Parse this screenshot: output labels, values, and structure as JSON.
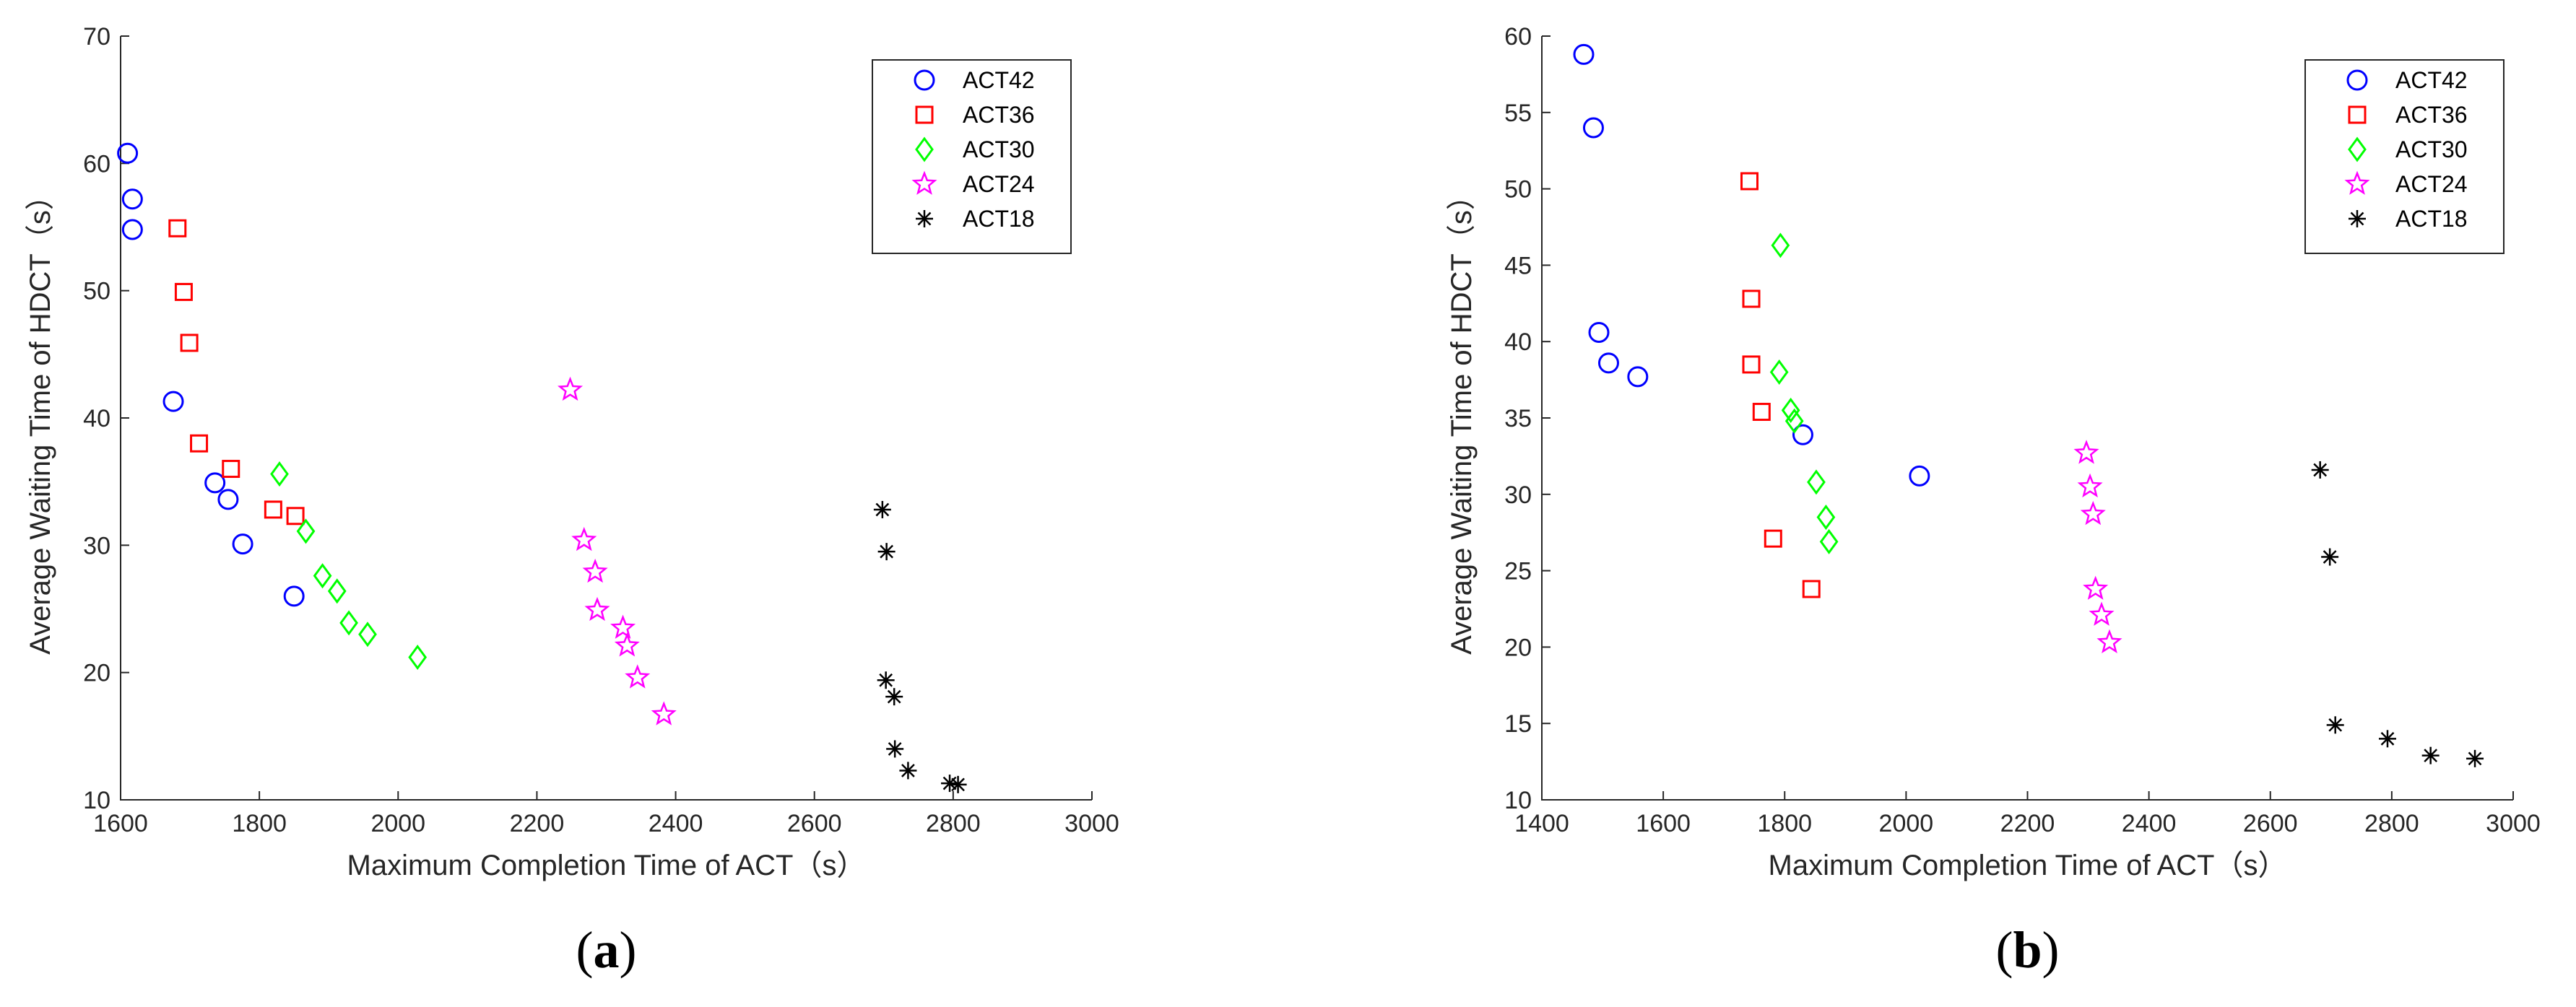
{
  "chart_data": [
    {
      "type": "scatter",
      "panel_label": "a",
      "xlabel": "Maximum Completion Time of ACT（s）",
      "ylabel": "Average Waiting Time of HDCT（s）",
      "xlim": [
        1600,
        3000
      ],
      "ylim": [
        10,
        70
      ],
      "xticks": [
        "1600",
        "1800",
        "2000",
        "2200",
        "2400",
        "2600",
        "2800",
        "3000"
      ],
      "yticks": [
        "10",
        "20",
        "30",
        "40",
        "50",
        "60",
        "70"
      ],
      "legend_position": "top-right",
      "grid": false,
      "series": [
        {
          "name": "ACT42",
          "marker": "circle",
          "color": "#0000FF",
          "points": [
            [
              1610,
              60.8
            ],
            [
              1617,
              57.2
            ],
            [
              1617,
              54.8
            ],
            [
              1676,
              41.3
            ],
            [
              1736,
              34.9
            ],
            [
              1755,
              33.6
            ],
            [
              1776,
              30.1
            ],
            [
              1850,
              26.0
            ]
          ]
        },
        {
          "name": "ACT36",
          "marker": "square",
          "color": "#FF0000",
          "points": [
            [
              1682,
              54.9
            ],
            [
              1691,
              49.9
            ],
            [
              1699,
              45.9
            ],
            [
              1713,
              38.0
            ],
            [
              1759,
              36.0
            ],
            [
              1820,
              32.8
            ],
            [
              1852,
              32.3
            ]
          ]
        },
        {
          "name": "ACT30",
          "marker": "diamond",
          "color": "#00FF00",
          "points": [
            [
              1829,
              35.6
            ],
            [
              1867,
              31.1
            ],
            [
              1891,
              27.6
            ],
            [
              1912,
              26.4
            ],
            [
              1929,
              23.9
            ],
            [
              1956,
              23.0
            ],
            [
              2028,
              21.2
            ]
          ]
        },
        {
          "name": "ACT24",
          "marker": "star",
          "color": "#FF00FF",
          "points": [
            [
              2248,
              42.2
            ],
            [
              2268,
              30.4
            ],
            [
              2284,
              27.9
            ],
            [
              2287,
              24.9
            ],
            [
              2324,
              23.5
            ],
            [
              2330,
              22.1
            ],
            [
              2345,
              19.6
            ],
            [
              2383,
              16.7
            ]
          ]
        },
        {
          "name": "ACT18",
          "marker": "asterisk",
          "color": "#000000",
          "points": [
            [
              2698,
              32.8
            ],
            [
              2704,
              29.5
            ],
            [
              2703,
              19.4
            ],
            [
              2715,
              18.1
            ],
            [
              2716,
              14.0
            ],
            [
              2735,
              12.3
            ],
            [
              2795,
              11.3
            ],
            [
              2807,
              11.2
            ]
          ]
        }
      ]
    },
    {
      "type": "scatter",
      "panel_label": "b",
      "xlabel": "Maximum Completion Time of ACT（s）",
      "ylabel": "Average Waiting Time of HDCT（s）",
      "xlim": [
        1400,
        3000
      ],
      "ylim": [
        10,
        60
      ],
      "xticks": [
        "1400",
        "1600",
        "1800",
        "2000",
        "2200",
        "2400",
        "2600",
        "2800",
        "3000"
      ],
      "yticks": [
        "10",
        "15",
        "20",
        "25",
        "30",
        "35",
        "40",
        "45",
        "50",
        "55",
        "60"
      ],
      "legend_position": "top-right",
      "grid": false,
      "series": [
        {
          "name": "ACT42",
          "marker": "circle",
          "color": "#0000FF",
          "points": [
            [
              1469,
              58.8
            ],
            [
              1485,
              54.0
            ],
            [
              1494,
              40.6
            ],
            [
              1510,
              38.6
            ],
            [
              1558,
              37.7
            ],
            [
              1830,
              33.9
            ],
            [
              2022,
              31.2
            ]
          ]
        },
        {
          "name": "ACT36",
          "marker": "square",
          "color": "#FF0000",
          "points": [
            [
              1742,
              50.5
            ],
            [
              1745,
              42.8
            ],
            [
              1745,
              38.5
            ],
            [
              1762,
              35.4
            ],
            [
              1781,
              27.1
            ],
            [
              1844,
              23.8
            ]
          ]
        },
        {
          "name": "ACT30",
          "marker": "diamond",
          "color": "#00FF00",
          "points": [
            [
              1793,
              46.3
            ],
            [
              1791,
              38.0
            ],
            [
              1810,
              35.5
            ],
            [
              1816,
              34.8
            ],
            [
              1852,
              30.8
            ],
            [
              1868,
              28.5
            ],
            [
              1873,
              26.9
            ]
          ]
        },
        {
          "name": "ACT24",
          "marker": "star",
          "color": "#FF00FF",
          "points": [
            [
              2297,
              32.7
            ],
            [
              2303,
              30.5
            ],
            [
              2308,
              28.7
            ],
            [
              2312,
              23.8
            ],
            [
              2322,
              22.1
            ],
            [
              2335,
              20.3
            ]
          ]
        },
        {
          "name": "ACT18",
          "marker": "asterisk",
          "color": "#000000",
          "points": [
            [
              2682,
              31.6
            ],
            [
              2698,
              25.9
            ],
            [
              2707,
              14.9
            ],
            [
              2793,
              14.0
            ],
            [
              2864,
              12.9
            ],
            [
              2937,
              12.7
            ]
          ]
        }
      ]
    }
  ]
}
